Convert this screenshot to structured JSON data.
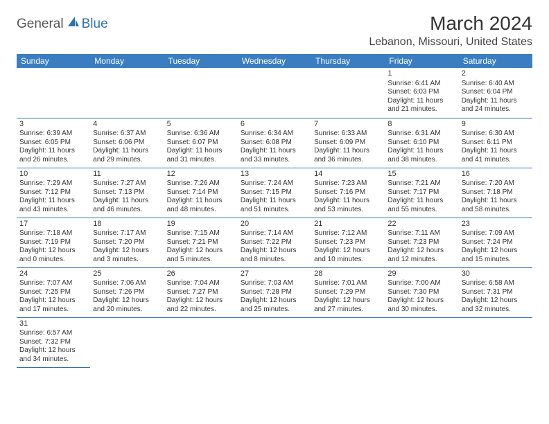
{
  "logo": {
    "text1": "General",
    "text2": "Blue"
  },
  "title": "March 2024",
  "location": "Lebanon, Missouri, United States",
  "colors": {
    "header_bg": "#3a7ec1",
    "header_text": "#ffffff",
    "border": "#2f6fb0",
    "logo_blue": "#2f6fb0",
    "text": "#333333"
  },
  "weekdays": [
    "Sunday",
    "Monday",
    "Tuesday",
    "Wednesday",
    "Thursday",
    "Friday",
    "Saturday"
  ],
  "weeks": [
    [
      null,
      null,
      null,
      null,
      null,
      {
        "n": "1",
        "sr": "Sunrise: 6:41 AM",
        "ss": "Sunset: 6:03 PM",
        "dl": "Daylight: 11 hours and 21 minutes."
      },
      {
        "n": "2",
        "sr": "Sunrise: 6:40 AM",
        "ss": "Sunset: 6:04 PM",
        "dl": "Daylight: 11 hours and 24 minutes."
      }
    ],
    [
      {
        "n": "3",
        "sr": "Sunrise: 6:39 AM",
        "ss": "Sunset: 6:05 PM",
        "dl": "Daylight: 11 hours and 26 minutes."
      },
      {
        "n": "4",
        "sr": "Sunrise: 6:37 AM",
        "ss": "Sunset: 6:06 PM",
        "dl": "Daylight: 11 hours and 29 minutes."
      },
      {
        "n": "5",
        "sr": "Sunrise: 6:36 AM",
        "ss": "Sunset: 6:07 PM",
        "dl": "Daylight: 11 hours and 31 minutes."
      },
      {
        "n": "6",
        "sr": "Sunrise: 6:34 AM",
        "ss": "Sunset: 6:08 PM",
        "dl": "Daylight: 11 hours and 33 minutes."
      },
      {
        "n": "7",
        "sr": "Sunrise: 6:33 AM",
        "ss": "Sunset: 6:09 PM",
        "dl": "Daylight: 11 hours and 36 minutes."
      },
      {
        "n": "8",
        "sr": "Sunrise: 6:31 AM",
        "ss": "Sunset: 6:10 PM",
        "dl": "Daylight: 11 hours and 38 minutes."
      },
      {
        "n": "9",
        "sr": "Sunrise: 6:30 AM",
        "ss": "Sunset: 6:11 PM",
        "dl": "Daylight: 11 hours and 41 minutes."
      }
    ],
    [
      {
        "n": "10",
        "sr": "Sunrise: 7:29 AM",
        "ss": "Sunset: 7:12 PM",
        "dl": "Daylight: 11 hours and 43 minutes."
      },
      {
        "n": "11",
        "sr": "Sunrise: 7:27 AM",
        "ss": "Sunset: 7:13 PM",
        "dl": "Daylight: 11 hours and 46 minutes."
      },
      {
        "n": "12",
        "sr": "Sunrise: 7:26 AM",
        "ss": "Sunset: 7:14 PM",
        "dl": "Daylight: 11 hours and 48 minutes."
      },
      {
        "n": "13",
        "sr": "Sunrise: 7:24 AM",
        "ss": "Sunset: 7:15 PM",
        "dl": "Daylight: 11 hours and 51 minutes."
      },
      {
        "n": "14",
        "sr": "Sunrise: 7:23 AM",
        "ss": "Sunset: 7:16 PM",
        "dl": "Daylight: 11 hours and 53 minutes."
      },
      {
        "n": "15",
        "sr": "Sunrise: 7:21 AM",
        "ss": "Sunset: 7:17 PM",
        "dl": "Daylight: 11 hours and 55 minutes."
      },
      {
        "n": "16",
        "sr": "Sunrise: 7:20 AM",
        "ss": "Sunset: 7:18 PM",
        "dl": "Daylight: 11 hours and 58 minutes."
      }
    ],
    [
      {
        "n": "17",
        "sr": "Sunrise: 7:18 AM",
        "ss": "Sunset: 7:19 PM",
        "dl": "Daylight: 12 hours and 0 minutes."
      },
      {
        "n": "18",
        "sr": "Sunrise: 7:17 AM",
        "ss": "Sunset: 7:20 PM",
        "dl": "Daylight: 12 hours and 3 minutes."
      },
      {
        "n": "19",
        "sr": "Sunrise: 7:15 AM",
        "ss": "Sunset: 7:21 PM",
        "dl": "Daylight: 12 hours and 5 minutes."
      },
      {
        "n": "20",
        "sr": "Sunrise: 7:14 AM",
        "ss": "Sunset: 7:22 PM",
        "dl": "Daylight: 12 hours and 8 minutes."
      },
      {
        "n": "21",
        "sr": "Sunrise: 7:12 AM",
        "ss": "Sunset: 7:23 PM",
        "dl": "Daylight: 12 hours and 10 minutes."
      },
      {
        "n": "22",
        "sr": "Sunrise: 7:11 AM",
        "ss": "Sunset: 7:23 PM",
        "dl": "Daylight: 12 hours and 12 minutes."
      },
      {
        "n": "23",
        "sr": "Sunrise: 7:09 AM",
        "ss": "Sunset: 7:24 PM",
        "dl": "Daylight: 12 hours and 15 minutes."
      }
    ],
    [
      {
        "n": "24",
        "sr": "Sunrise: 7:07 AM",
        "ss": "Sunset: 7:25 PM",
        "dl": "Daylight: 12 hours and 17 minutes."
      },
      {
        "n": "25",
        "sr": "Sunrise: 7:06 AM",
        "ss": "Sunset: 7:26 PM",
        "dl": "Daylight: 12 hours and 20 minutes."
      },
      {
        "n": "26",
        "sr": "Sunrise: 7:04 AM",
        "ss": "Sunset: 7:27 PM",
        "dl": "Daylight: 12 hours and 22 minutes."
      },
      {
        "n": "27",
        "sr": "Sunrise: 7:03 AM",
        "ss": "Sunset: 7:28 PM",
        "dl": "Daylight: 12 hours and 25 minutes."
      },
      {
        "n": "28",
        "sr": "Sunrise: 7:01 AM",
        "ss": "Sunset: 7:29 PM",
        "dl": "Daylight: 12 hours and 27 minutes."
      },
      {
        "n": "29",
        "sr": "Sunrise: 7:00 AM",
        "ss": "Sunset: 7:30 PM",
        "dl": "Daylight: 12 hours and 30 minutes."
      },
      {
        "n": "30",
        "sr": "Sunrise: 6:58 AM",
        "ss": "Sunset: 7:31 PM",
        "dl": "Daylight: 12 hours and 32 minutes."
      }
    ],
    [
      {
        "n": "31",
        "sr": "Sunrise: 6:57 AM",
        "ss": "Sunset: 7:32 PM",
        "dl": "Daylight: 12 hours and 34 minutes."
      },
      null,
      null,
      null,
      null,
      null,
      null
    ]
  ]
}
